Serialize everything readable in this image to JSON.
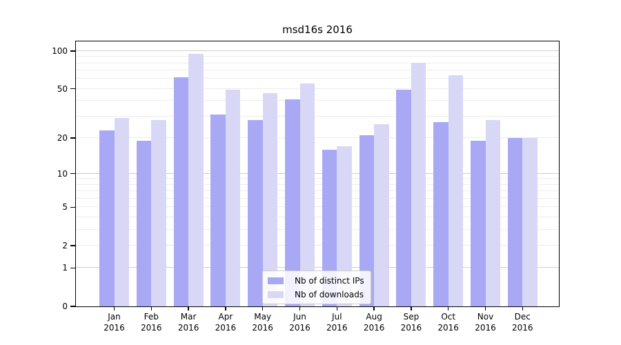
{
  "chart_data": {
    "type": "bar",
    "title": "msd16s 2016",
    "categories": [
      "Jan 2016",
      "Feb 2016",
      "Mar 2016",
      "Apr 2016",
      "May 2016",
      "Jun 2016",
      "Jul 2016",
      "Aug 2016",
      "Sep 2016",
      "Oct 2016",
      "Nov 2016",
      "Dec 2016"
    ],
    "series": [
      {
        "name": "Nb of distinct IPs",
        "color": "#a8a8f4",
        "values": [
          23,
          19,
          62,
          31,
          28,
          41,
          16,
          21,
          49,
          27,
          19,
          20
        ]
      },
      {
        "name": "Nb of downloads",
        "color": "#d8d8f6",
        "values": [
          29,
          28,
          95,
          49,
          46,
          55,
          17,
          26,
          81,
          64,
          28,
          20
        ]
      }
    ],
    "xlabel": "",
    "ylabel": "",
    "y_scale": "symlog",
    "y_ticks": [
      0,
      1,
      2,
      5,
      10,
      20,
      50,
      100
    ],
    "y_minor_gridlines": [
      2,
      3,
      4,
      5,
      6,
      7,
      8,
      9,
      20,
      30,
      40,
      50,
      60,
      70,
      80,
      90
    ],
    "y_major_gridlines": [
      1,
      10,
      100
    ],
    "y_max": 119,
    "grid": "on",
    "legend_position": "lower center"
  },
  "colors": {
    "major_gridline": "#cccccc",
    "minor_gridline": "#ececec",
    "axis": "#000000",
    "bar_distinct_ips": "#a8a8f4",
    "bar_downloads": "#d8d8f6"
  }
}
